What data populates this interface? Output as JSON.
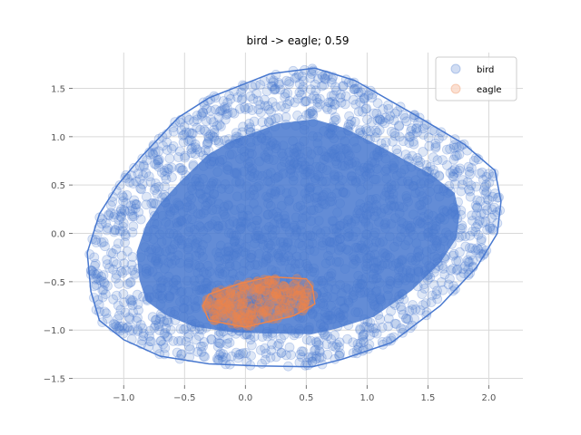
{
  "chart_data": {
    "type": "scatter",
    "title": "bird -> eagle; 0.59",
    "xlabel": "",
    "ylabel": "",
    "xlim": [
      -1.42,
      2.28
    ],
    "ylim": [
      -1.57,
      1.87
    ],
    "grid": true,
    "legend_position": "top-right",
    "x_ticks": [
      -1.0,
      -0.5,
      0.0,
      0.5,
      1.0,
      1.5,
      2.0
    ],
    "x_tick_labels": [
      "−1.0",
      "−0.5",
      "0.0",
      "0.5",
      "1.0",
      "1.5",
      "2.0"
    ],
    "y_ticks": [
      -1.5,
      -1.0,
      -0.5,
      0.0,
      0.5,
      1.0,
      1.5
    ],
    "y_tick_labels": [
      "−1.5",
      "−1.0",
      "−0.5",
      "0.0",
      "0.5",
      "1.0",
      "1.5"
    ],
    "series": [
      {
        "name": "bird",
        "color": "#4878cf",
        "hull": [
          [
            -1.3,
            -0.2
          ],
          [
            -1.27,
            -0.6
          ],
          [
            -1.2,
            -0.9
          ],
          [
            -1.0,
            -1.1
          ],
          [
            -0.7,
            -1.27
          ],
          [
            -0.3,
            -1.35
          ],
          [
            0.1,
            -1.37
          ],
          [
            0.55,
            -1.38
          ],
          [
            0.8,
            -1.3
          ],
          [
            1.2,
            -1.13
          ],
          [
            1.6,
            -0.75
          ],
          [
            1.9,
            -0.35
          ],
          [
            2.07,
            0.0
          ],
          [
            2.1,
            0.33
          ],
          [
            2.05,
            0.65
          ],
          [
            1.8,
            0.92
          ],
          [
            1.4,
            1.22
          ],
          [
            0.9,
            1.58
          ],
          [
            0.57,
            1.71
          ],
          [
            0.2,
            1.65
          ],
          [
            -0.3,
            1.4
          ],
          [
            -0.55,
            1.2
          ],
          [
            -0.85,
            0.8
          ],
          [
            -1.05,
            0.5
          ],
          [
            -1.2,
            0.2
          ]
        ],
        "point_count": 2200
      },
      {
        "name": "eagle",
        "color": "#ee854a",
        "hull": [
          [
            -0.35,
            -0.75
          ],
          [
            -0.3,
            -0.9
          ],
          [
            0.0,
            -0.97
          ],
          [
            0.4,
            -0.85
          ],
          [
            0.57,
            -0.73
          ],
          [
            0.55,
            -0.55
          ],
          [
            0.5,
            -0.47
          ],
          [
            0.2,
            -0.45
          ],
          [
            -0.05,
            -0.52
          ],
          [
            -0.3,
            -0.63
          ]
        ],
        "point_count": 220
      }
    ]
  }
}
